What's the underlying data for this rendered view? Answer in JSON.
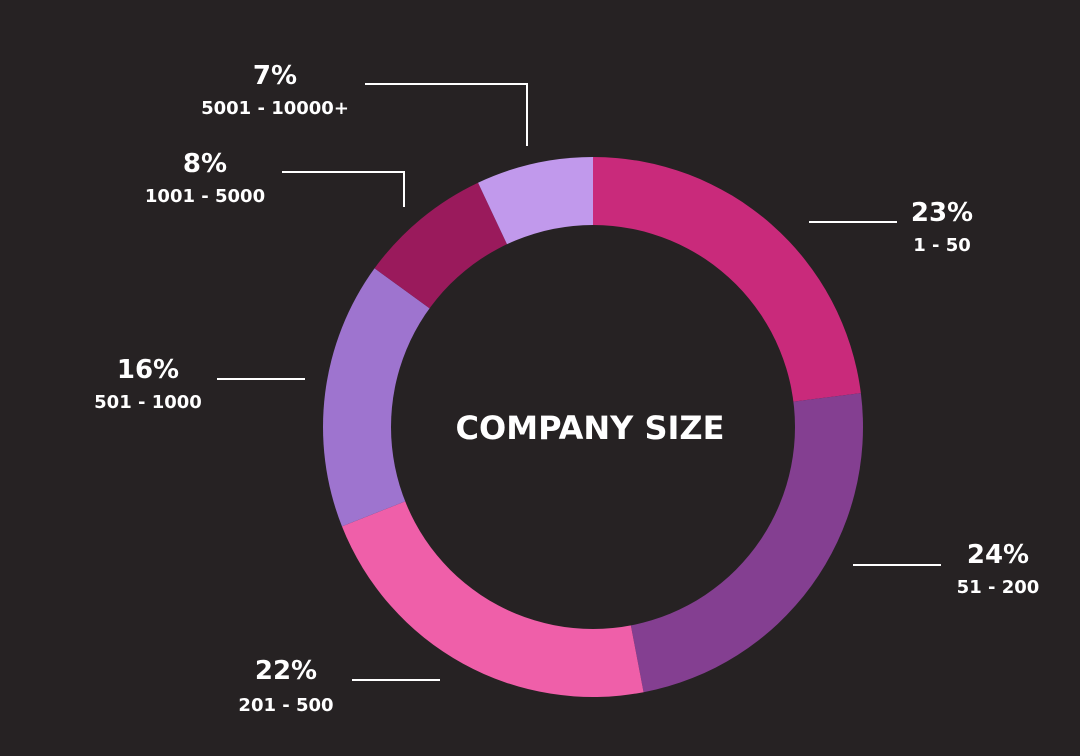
{
  "chart_data": {
    "type": "pie",
    "variant": "donut",
    "title": "COMPANY SIZE",
    "slices": [
      {
        "category": "1 - 50",
        "label": "23%",
        "value": 23,
        "color": "#C92A7B"
      },
      {
        "category": "51 - 200",
        "label": "24%",
        "value": 24,
        "color": "#843F91"
      },
      {
        "category": "201 - 500",
        "label": "22%",
        "value": 22,
        "color": "#EF5FA9"
      },
      {
        "category": "501 - 1000",
        "label": "16%",
        "value": 16,
        "color": "#9E74CF"
      },
      {
        "category": "1001 - 5000",
        "label": "8%",
        "value": 8,
        "color": "#9A1A5C"
      },
      {
        "category": "5001 - 10000+",
        "label": "7%",
        "value": 7,
        "color": "#C199EC"
      }
    ],
    "start_angle": "12 o'clock",
    "direction": "clockwise",
    "legend": "none",
    "background": "#262223"
  }
}
